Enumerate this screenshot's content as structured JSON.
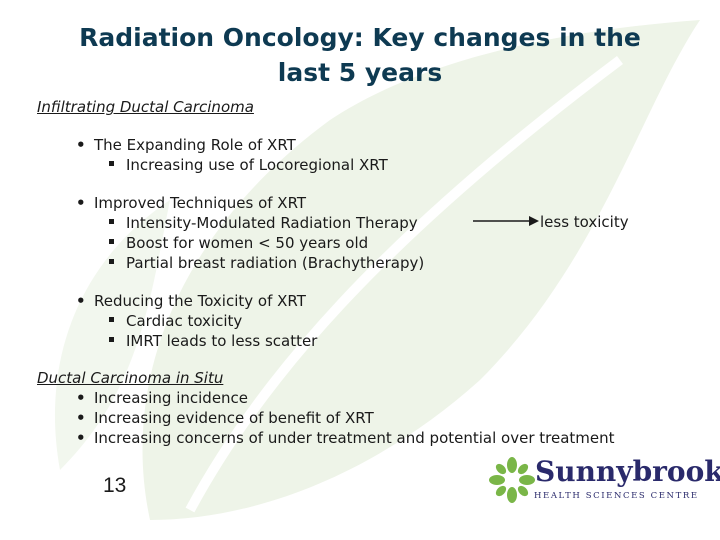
{
  "title": {
    "line1": "Radiation Oncology: Key changes in the",
    "line2": "last 5 years"
  },
  "section1": {
    "heading": "Infiltrating Ductal Carcinoma",
    "bullets": [
      {
        "text": "The Expanding Role of XRT",
        "sub": [
          "Increasing use of Locoregional XRT"
        ]
      },
      {
        "text": "Improved Techniques of XRT",
        "sub": [
          "Intensity-Modulated Radiation Therapy",
          "Boost for women < 50 years old",
          "Partial breast radiation (Brachytherapy)"
        ]
      },
      {
        "text": "Reducing the Toxicity of XRT",
        "sub": [
          "Cardiac toxicity",
          "IMRT leads to less scatter"
        ]
      }
    ],
    "arrow_label": "less toxicity"
  },
  "section2": {
    "heading": "Ductal Carcinoma in Situ",
    "bullets": [
      "Increasing incidence",
      "Increasing evidence of benefit of XRT",
      "Increasing concerns of under treatment and potential over treatment"
    ]
  },
  "page_number": "13",
  "logo": {
    "name": "Sunnybrook",
    "subtitle": "HEALTH SCIENCES CENTRE",
    "color": "#2a2a6b",
    "leaf_color": "#7ab648"
  },
  "colors": {
    "title": "#0e3a52",
    "background_leaf": "#eef4e8"
  }
}
